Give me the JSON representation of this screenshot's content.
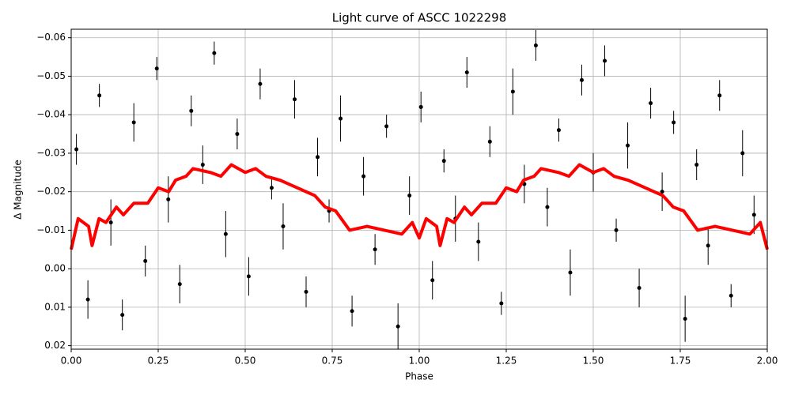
{
  "chart_data": {
    "type": "errorbar",
    "title": "Light curve of ASCC 1022298",
    "x_label": "Phase",
    "y_label": "Δ Magnitude",
    "xlim": [
      0,
      2
    ],
    "ylim": [
      0.0209,
      -0.0622
    ],
    "grid": true,
    "xticks": [
      {
        "value": 0,
        "label": "0.00"
      },
      {
        "value": 0.25,
        "label": "0.25"
      },
      {
        "value": 0.5,
        "label": "0.50"
      },
      {
        "value": 0.75,
        "label": "0.75"
      },
      {
        "value": 1,
        "label": "1.00"
      },
      {
        "value": 1.25,
        "label": "1.25"
      },
      {
        "value": 1.5,
        "label": "1.50"
      },
      {
        "value": 1.75,
        "label": "1.75"
      },
      {
        "value": 2,
        "label": "2.00"
      }
    ],
    "yticks": [
      {
        "value": -0.06,
        "label": "−0.06"
      },
      {
        "value": -0.05,
        "label": "−0.05"
      },
      {
        "value": -0.04,
        "label": "−0.04"
      },
      {
        "value": -0.03,
        "label": "−0.03"
      },
      {
        "value": -0.02,
        "label": "−0.02"
      },
      {
        "value": -0.01,
        "label": "−0.01"
      },
      {
        "value": 0,
        "label": "0.00"
      },
      {
        "value": 0.01,
        "label": "0.01"
      },
      {
        "value": 0.02,
        "label": "0.02"
      }
    ],
    "series": [
      {
        "kind": "errorbar",
        "color": "#000000",
        "x": [
          0.015,
          0.048,
          0.081,
          0.114,
          0.147,
          0.18,
          0.213,
          0.246,
          0.279,
          0.312,
          0.345,
          0.378,
          0.411,
          0.444,
          0.477,
          0.51,
          0.543,
          0.576,
          0.609,
          0.642,
          0.675,
          0.708,
          0.741,
          0.774,
          0.807,
          0.84,
          0.873,
          0.906,
          0.939,
          0.972,
          1.005,
          1.038,
          1.071,
          1.104,
          1.137,
          1.17,
          1.203,
          1.236,
          1.269,
          1.302,
          1.335,
          1.368,
          1.401,
          1.434,
          1.467,
          1.5,
          1.533,
          1.566,
          1.599,
          1.632,
          1.665,
          1.698,
          1.731,
          1.764,
          1.797,
          1.83,
          1.863,
          1.896,
          1.929,
          1.962
        ],
        "values": [
          -0.031,
          0.008,
          -0.045,
          -0.012,
          0.012,
          -0.038,
          -0.002,
          -0.052,
          -0.018,
          0.004,
          -0.041,
          -0.027,
          -0.056,
          -0.009,
          -0.035,
          0.002,
          -0.048,
          -0.021,
          -0.011,
          -0.044,
          0.006,
          -0.029,
          -0.015,
          -0.039,
          0.011,
          -0.024,
          -0.005,
          -0.037,
          0.015,
          -0.019,
          -0.042,
          0.003,
          -0.028,
          -0.013,
          -0.051,
          -0.007,
          -0.033,
          0.009,
          -0.046,
          -0.022,
          -0.058,
          -0.016,
          -0.036,
          0.001,
          -0.049,
          -0.025,
          -0.054,
          -0.01,
          -0.032,
          0.005,
          -0.043,
          -0.02,
          -0.038,
          0.013,
          -0.027,
          -0.006,
          -0.045,
          0.007,
          -0.03,
          -0.014
        ],
        "errors": [
          0.004,
          0.005,
          0.003,
          0.006,
          0.004,
          0.005,
          0.004,
          0.003,
          0.006,
          0.005,
          0.004,
          0.005,
          0.003,
          0.006,
          0.004,
          0.005,
          0.004,
          0.003,
          0.006,
          0.005,
          0.004,
          0.005,
          0.003,
          0.006,
          0.004,
          0.005,
          0.004,
          0.003,
          0.006,
          0.005,
          0.004,
          0.005,
          0.003,
          0.006,
          0.004,
          0.005,
          0.004,
          0.003,
          0.006,
          0.005,
          0.004,
          0.005,
          0.003,
          0.006,
          0.004,
          0.005,
          0.004,
          0.003,
          0.006,
          0.005,
          0.004,
          0.005,
          0.003,
          0.006,
          0.004,
          0.005,
          0.004,
          0.003,
          0.006,
          0.005
        ]
      },
      {
        "kind": "line",
        "color": "#ff0000",
        "x": [
          0,
          0.02,
          0.05,
          0.06,
          0.08,
          0.1,
          0.13,
          0.15,
          0.18,
          0.22,
          0.25,
          0.28,
          0.3,
          0.33,
          0.35,
          0.4,
          0.43,
          0.46,
          0.5,
          0.53,
          0.56,
          0.6,
          0.65,
          0.7,
          0.73,
          0.76,
          0.8,
          0.85,
          0.9,
          0.95,
          0.98,
          1.0,
          1.02,
          1.05,
          1.06,
          1.08,
          1.1,
          1.13,
          1.15,
          1.18,
          1.22,
          1.25,
          1.28,
          1.3,
          1.33,
          1.35,
          1.4,
          1.43,
          1.46,
          1.5,
          1.53,
          1.56,
          1.6,
          1.65,
          1.7,
          1.73,
          1.76,
          1.8,
          1.85,
          1.9,
          1.95,
          1.98,
          2.0
        ],
        "values": [
          -0.005,
          -0.013,
          -0.011,
          -0.006,
          -0.013,
          -0.012,
          -0.016,
          -0.014,
          -0.017,
          -0.017,
          -0.021,
          -0.02,
          -0.023,
          -0.024,
          -0.026,
          -0.025,
          -0.024,
          -0.027,
          -0.025,
          -0.026,
          -0.024,
          -0.023,
          -0.021,
          -0.019,
          -0.016,
          -0.015,
          -0.01,
          -0.011,
          -0.01,
          -0.009,
          -0.012,
          -0.008,
          -0.013,
          -0.011,
          -0.006,
          -0.013,
          -0.012,
          -0.016,
          -0.014,
          -0.017,
          -0.017,
          -0.021,
          -0.02,
          -0.023,
          -0.024,
          -0.026,
          -0.025,
          -0.024,
          -0.027,
          -0.025,
          -0.026,
          -0.024,
          -0.023,
          -0.021,
          -0.019,
          -0.016,
          -0.015,
          -0.01,
          -0.011,
          -0.01,
          -0.009,
          -0.012,
          -0.005
        ]
      }
    ]
  }
}
